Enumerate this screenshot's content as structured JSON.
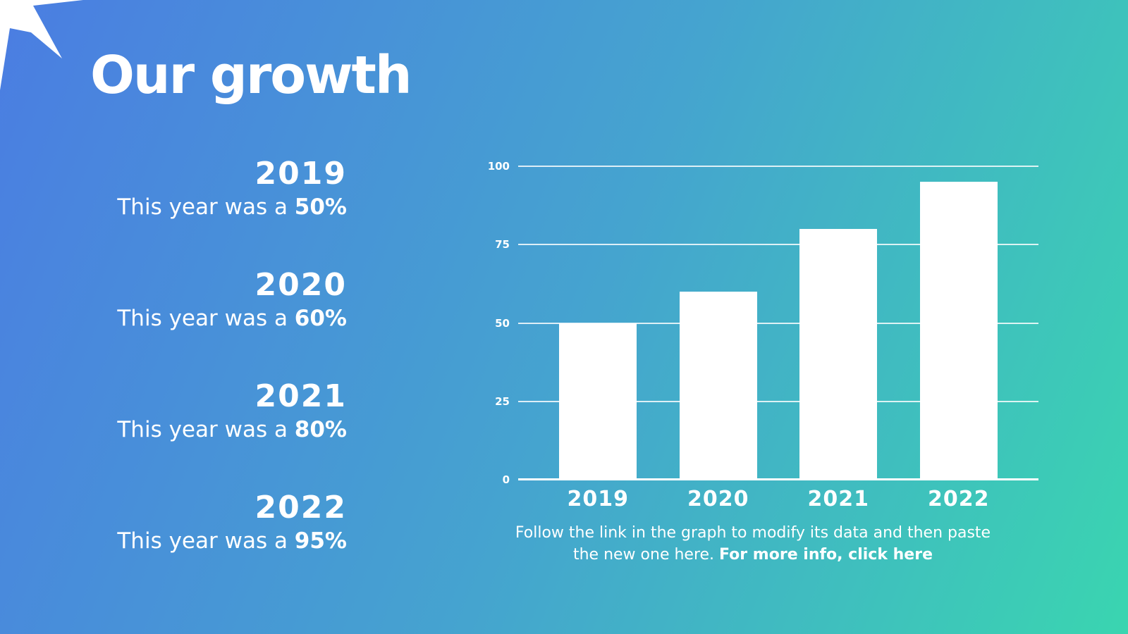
{
  "slide": {
    "title": "Our growth",
    "background": {
      "gradient_start": "#4b7de2",
      "gradient_end": "#3ad5b0"
    },
    "text_color": "#ffffff"
  },
  "growth": {
    "items": [
      {
        "year": "2019",
        "prefix": "This year was a ",
        "value": "50%"
      },
      {
        "year": "2020",
        "prefix": "This year was a ",
        "value": "60%"
      },
      {
        "year": "2021",
        "prefix": "This year was a ",
        "value": "80%"
      },
      {
        "year": "2022",
        "prefix": "This year was a ",
        "value": "95%"
      }
    ]
  },
  "chart_data": {
    "type": "bar",
    "categories": [
      "2019",
      "2020",
      "2021",
      "2022"
    ],
    "values": [
      50,
      60,
      80,
      95
    ],
    "yticks": [
      0,
      25,
      50,
      75,
      100
    ],
    "ylim": [
      0,
      100
    ],
    "title": "",
    "xlabel": "",
    "ylabel": "",
    "grid": true,
    "legend": false,
    "bar_color": "#ffffff",
    "gridline_color": "rgba(255,255,255,0.82)",
    "axis_color": "#ffffff",
    "tick_label_color": "#ffffff"
  },
  "caption": {
    "line1": "Follow the link in the graph to modify its data and then paste",
    "line2_normal": "the new one here. ",
    "line2_bold": "For more info, click here"
  },
  "decor": {
    "star_icon": "four-point-star"
  }
}
